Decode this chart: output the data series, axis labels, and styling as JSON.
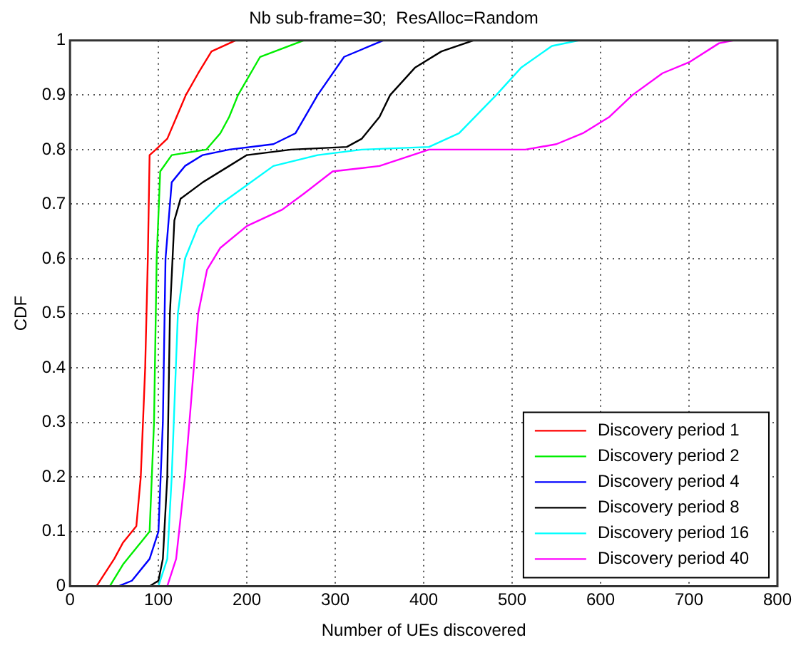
{
  "chart_data": {
    "type": "line",
    "title": "Nb sub-frame=30;  ResAlloc=Random",
    "xlabel": "Number of UEs discovered",
    "ylabel": "CDF",
    "xlim": [
      0,
      800
    ],
    "xticks": [
      0,
      100,
      200,
      300,
      400,
      500,
      600,
      700,
      800
    ],
    "ylim": [
      0,
      1
    ],
    "yticks": [
      0,
      0.1,
      0.2,
      0.3,
      0.4,
      0.5,
      0.6,
      0.7,
      0.8,
      0.9,
      1
    ],
    "grid": true,
    "legend": "bottom right",
    "marker": "none",
    "line_style": "solid",
    "series": [
      {
        "name": "Discovery period 1",
        "color": "#ff0000",
        "x": [
          30,
          50,
          60,
          75,
          80,
          85,
          88,
          90,
          97,
          110,
          131,
          145,
          160,
          187
        ],
        "values": [
          0,
          0.05,
          0.08,
          0.11,
          0.2,
          0.4,
          0.6,
          0.79,
          0.8,
          0.82,
          0.9,
          0.94,
          0.98,
          1
        ]
      },
      {
        "name": "Discovery period 2",
        "color": "#00ee00",
        "x": [
          45,
          60,
          80,
          90,
          95,
          98,
          102,
          115,
          154,
          170,
          180,
          190,
          215,
          264
        ],
        "values": [
          0,
          0.04,
          0.08,
          0.1,
          0.3,
          0.6,
          0.76,
          0.79,
          0.8,
          0.83,
          0.86,
          0.9,
          0.97,
          1
        ]
      },
      {
        "name": "Discovery period 4",
        "color": "#0000ff",
        "x": [
          55,
          70,
          90,
          100,
          105,
          108,
          115,
          130,
          150,
          180,
          230,
          255,
          280,
          310,
          354
        ],
        "values": [
          0,
          0.01,
          0.05,
          0.1,
          0.3,
          0.6,
          0.74,
          0.77,
          0.79,
          0.8,
          0.81,
          0.83,
          0.9,
          0.97,
          1
        ]
      },
      {
        "name": "Discovery period 8",
        "color": "#000000",
        "x": [
          90,
          100,
          105,
          110,
          113,
          118,
          125,
          150,
          180,
          200,
          250,
          313,
          330,
          350,
          362,
          390,
          420,
          456
        ],
        "values": [
          0,
          0.01,
          0.05,
          0.2,
          0.5,
          0.67,
          0.71,
          0.74,
          0.77,
          0.79,
          0.8,
          0.805,
          0.82,
          0.86,
          0.9,
          0.95,
          0.98,
          1
        ]
      },
      {
        "name": "Discovery period 16",
        "color": "#00ffff",
        "x": [
          100,
          110,
          115,
          122,
          130,
          145,
          170,
          200,
          230,
          280,
          330,
          406,
          440,
          470,
          482,
          510,
          545,
          575
        ],
        "values": [
          0,
          0.05,
          0.2,
          0.5,
          0.6,
          0.66,
          0.7,
          0.735,
          0.77,
          0.79,
          0.8,
          0.805,
          0.83,
          0.88,
          0.9,
          0.95,
          0.99,
          1
        ]
      },
      {
        "name": "Discovery period 40",
        "color": "#ff00ff",
        "x": [
          110,
          120,
          130,
          145,
          155,
          170,
          200,
          240,
          265,
          297,
          350,
          406,
          515,
          550,
          580,
          610,
          636,
          670,
          700,
          734,
          750
        ],
        "values": [
          0,
          0.05,
          0.2,
          0.5,
          0.58,
          0.62,
          0.66,
          0.69,
          0.72,
          0.76,
          0.77,
          0.8,
          0.8,
          0.81,
          0.83,
          0.86,
          0.9,
          0.94,
          0.96,
          0.995,
          1
        ]
      }
    ]
  }
}
